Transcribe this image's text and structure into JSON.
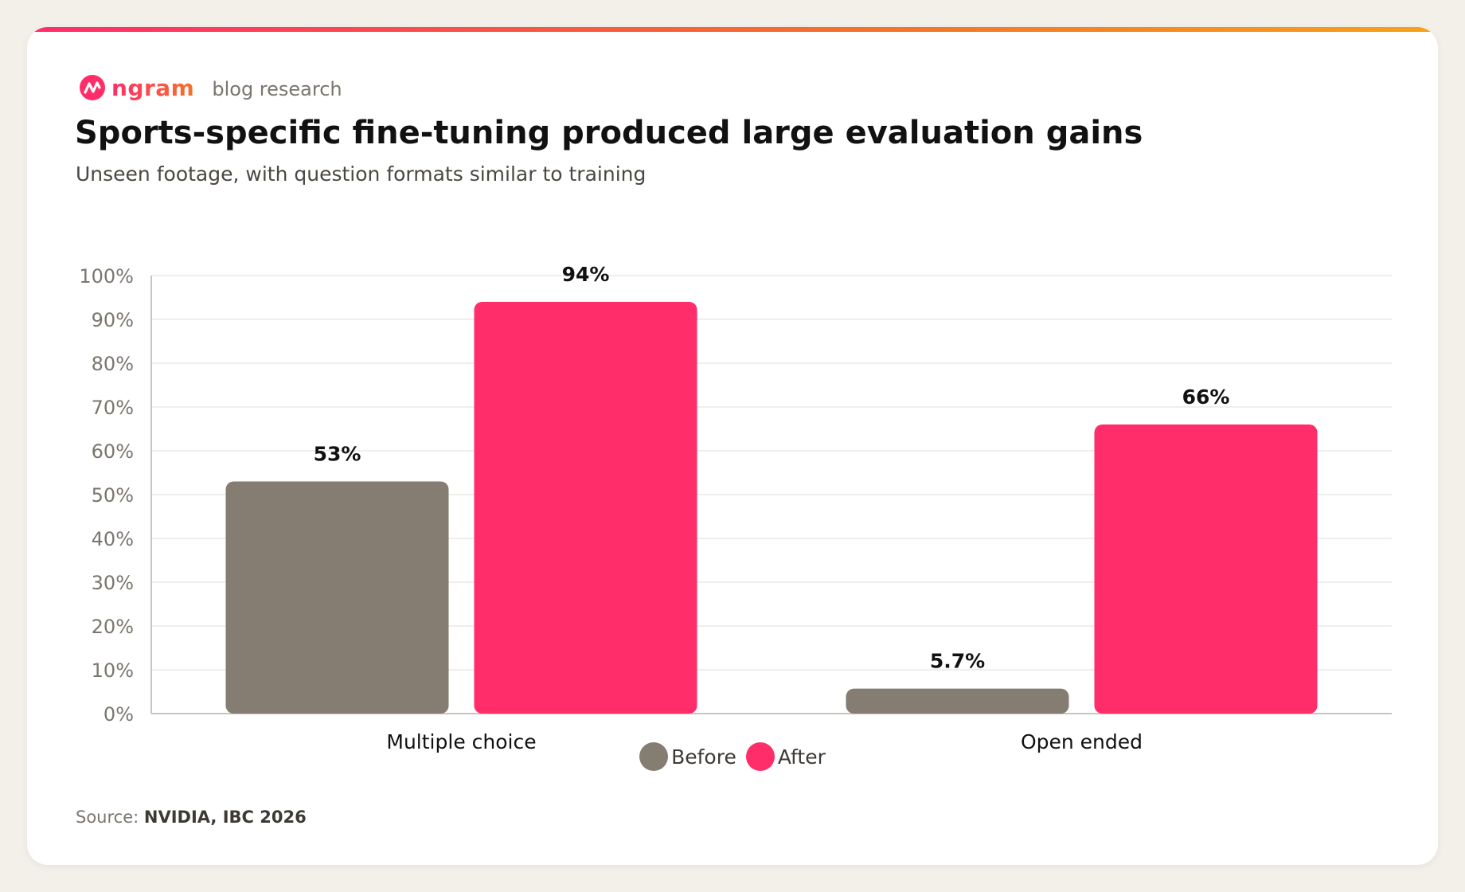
{
  "brand": {
    "logo_text": "ngram",
    "section": "blog research"
  },
  "colors": {
    "before": "#857d71",
    "after": "#ff2d6a",
    "grid": "#ebe8e3",
    "axis": "#c9c5be",
    "tick": "#7a756d",
    "label": "#111111"
  },
  "chart_data": {
    "type": "bar",
    "title": "Sports-specific fine-tuning produced large evaluation gains",
    "subtitle": "Unseen footage, with question formats similar to training",
    "categories": [
      "Multiple choice",
      "Open ended"
    ],
    "series": [
      {
        "name": "Before",
        "values": [
          53,
          5.7
        ],
        "labels": [
          "53%",
          "5.7%"
        ]
      },
      {
        "name": "After",
        "values": [
          94,
          66
        ],
        "labels": [
          "94%",
          "66%"
        ]
      }
    ],
    "ylim": [
      0,
      100
    ],
    "yticks": [
      "0%",
      "10%",
      "20%",
      "30%",
      "40%",
      "50%",
      "60%",
      "70%",
      "80%",
      "90%",
      "100%"
    ],
    "grid": true,
    "legend": "bottom-center"
  },
  "source": {
    "prefix": "Source:",
    "value": "NVIDIA, IBC 2026"
  }
}
